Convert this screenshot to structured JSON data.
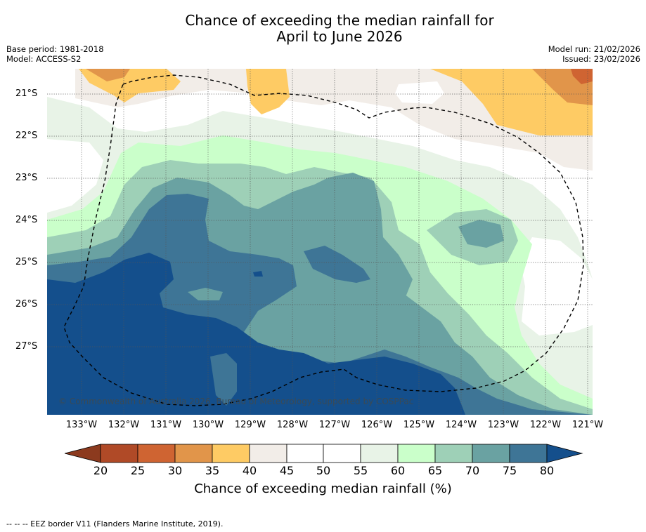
{
  "title": {
    "line1": "Chance of exceeding the median rainfall for",
    "line2": "April to June 2026"
  },
  "meta": {
    "base_period": "Base period: 1981-2018",
    "model": "Model: ACCESS-S2",
    "model_run": "Model run: 21/02/2026",
    "issued": "Issued: 23/02/2026"
  },
  "map": {
    "copyright": "© Commonwealth of Australia 2026, Bureau of Meteorology, supported by COSPPac",
    "lat_labels": [
      "21°S",
      "22°S",
      "23°S",
      "24°S",
      "25°S",
      "26°S",
      "27°S"
    ],
    "lon_labels": [
      "133°W",
      "132°W",
      "131°W",
      "130°W",
      "129°W",
      "128°W",
      "127°W",
      "126°W",
      "125°W",
      "124°W",
      "123°W",
      "122°W",
      "121°W"
    ]
  },
  "colorbar": {
    "ticks": [
      "20",
      "25",
      "30",
      "35",
      "40",
      "45",
      "50",
      "55",
      "60",
      "65",
      "70",
      "75",
      "80"
    ],
    "label": "Chance of exceeding median rainfall (%)",
    "colors": {
      "under": "#8c3a1e",
      "b20_25": "#b04a27",
      "b25_30": "#cf6432",
      "b30_35": "#e1954a",
      "b35_40": "#fecb64",
      "b40_45": "#f2ede8",
      "b45_50": "#ffffff",
      "b50_55": "#ffffff",
      "b55_60": "#e8f3e7",
      "b60_65": "#caffca",
      "b65_70": "#9ed0b7",
      "b70_75": "#6aa2a2",
      "b75_80": "#3e7596",
      "over": "#144f8c"
    }
  },
  "legend": {
    "eez": "--  --  -- EEZ border V11 (Flanders Marine Institute, 2019)."
  }
}
